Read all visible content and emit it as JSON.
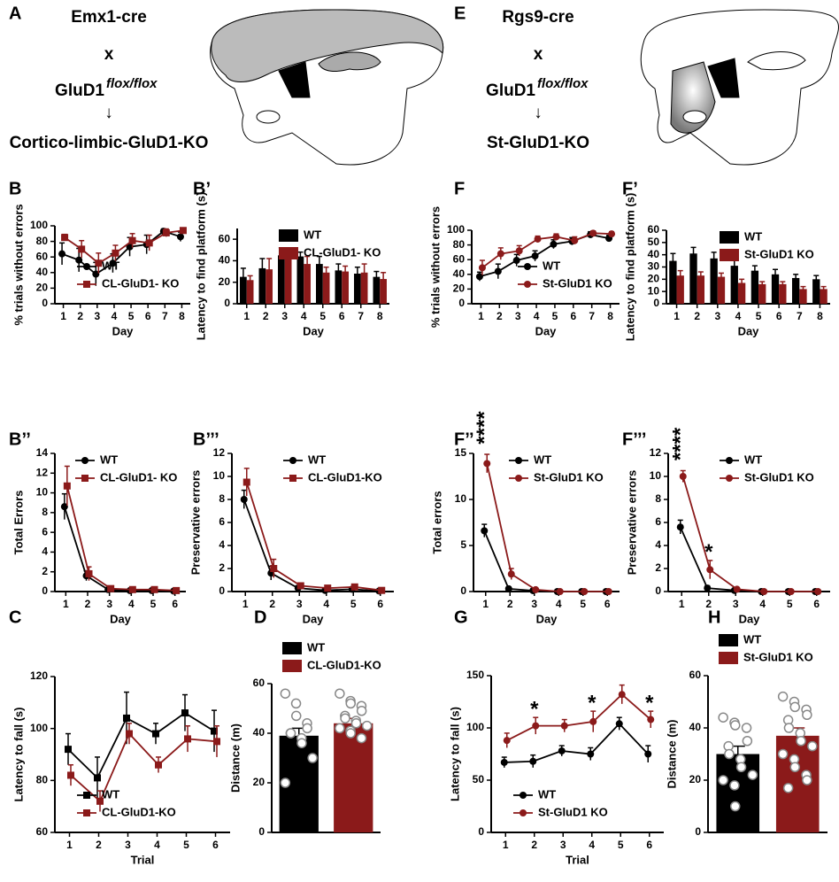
{
  "schematics": [
    {
      "panel": "A",
      "driver": "Emx1-cre",
      "cross": "x",
      "gene": "GluD1",
      "genotype": "flox/flox",
      "arrow": "↓",
      "result": "Cortico-limbic-GluD1-KO"
    },
    {
      "panel": "E",
      "driver": "Rgs9-cre",
      "cross": "x",
      "gene": "GluD1",
      "genotype": "flox/flox",
      "arrow": "↓",
      "result": "St-GluD1-KO"
    }
  ],
  "chart_data": [
    {
      "type": "line",
      "panel": "B",
      "xlabel": "Day",
      "ylabel": "% trials without errors",
      "categories": [
        "1",
        "2",
        "3",
        "4",
        "5",
        "6",
        "7",
        "8"
      ],
      "ylim": [
        0,
        100
      ],
      "yticks": [
        0,
        20,
        40,
        60,
        80,
        100
      ],
      "legend": "lower left",
      "series": [
        {
          "name": "WT",
          "color": "#000000",
          "marker": "circle",
          "values": [
            64,
            56,
            38,
            52,
            73,
            76,
            93,
            86
          ],
          "errors": [
            14,
            15,
            15,
            12,
            12,
            12,
            3,
            6
          ]
        },
        {
          "name": "CL-GluD1- KO",
          "color": "#8b1a1a",
          "marker": "square",
          "values": [
            85,
            70,
            52,
            65,
            81,
            78,
            91,
            94
          ],
          "errors": [
            4,
            11,
            13,
            10,
            9,
            10,
            5,
            3
          ]
        }
      ]
    },
    {
      "type": "bar",
      "panel": "B’",
      "xlabel": "Day",
      "ylabel": "Latency to find platform (s)",
      "categories": [
        "1",
        "2",
        "3",
        "4",
        "5",
        "6",
        "7",
        "8"
      ],
      "ylim": [
        0,
        70
      ],
      "yticks": [
        0,
        20,
        40,
        60
      ],
      "legend": "upper right",
      "series": [
        {
          "name": "WT",
          "color": "#000000",
          "values": [
            25,
            33,
            45,
            44,
            37,
            31,
            28,
            25
          ],
          "errors": [
            8,
            9,
            7,
            4,
            7,
            6,
            6,
            5
          ]
        },
        {
          "name": "CL-GluD1- KO",
          "color": "#8b1a1a",
          "values": [
            22,
            32,
            43,
            37,
            29,
            30,
            29,
            23
          ],
          "errors": [
            4,
            10,
            7,
            7,
            5,
            5,
            8,
            6
          ]
        }
      ]
    },
    {
      "type": "line",
      "panel": "F",
      "xlabel": "Day",
      "ylabel": "% trials without errors",
      "categories": [
        "1",
        "2",
        "3",
        "4",
        "5",
        "6",
        "7",
        "8"
      ],
      "ylim": [
        0,
        100
      ],
      "yticks": [
        0,
        20,
        40,
        60,
        80,
        100
      ],
      "legend": "lower right",
      "series": [
        {
          "name": "WT",
          "color": "#000000",
          "marker": "circle",
          "values": [
            37,
            44,
            59,
            65,
            81,
            85,
            94,
            89
          ],
          "errors": [
            6,
            10,
            8,
            7,
            6,
            5,
            4,
            4
          ]
        },
        {
          "name": "St-GluD1 KO",
          "color": "#8b1a1a",
          "marker": "circle",
          "values": [
            49,
            68,
            72,
            88,
            91,
            86,
            96,
            95
          ],
          "errors": [
            10,
            8,
            7,
            4,
            4,
            5,
            3,
            3
          ]
        }
      ]
    },
    {
      "type": "bar",
      "panel": "F’",
      "xlabel": "Day",
      "ylabel": "Latency to find platform (s)",
      "categories": [
        "1",
        "2",
        "3",
        "4",
        "5",
        "6",
        "7",
        "8"
      ],
      "ylim": [
        0,
        60
      ],
      "yticks": [
        0,
        10,
        20,
        30,
        40,
        50,
        60
      ],
      "legend": "upper right",
      "series": [
        {
          "name": "WT",
          "color": "#000000",
          "values": [
            35,
            41,
            37,
            31,
            27,
            24,
            21,
            20
          ],
          "errors": [
            6,
            5,
            5,
            5,
            4,
            4,
            3,
            3
          ]
        },
        {
          "name": "St-GluD1 KO",
          "color": "#8b1a1a",
          "values": [
            23,
            23,
            22,
            17,
            16,
            16,
            12,
            12
          ],
          "errors": [
            4,
            3,
            3,
            3,
            2,
            2,
            2,
            2
          ]
        }
      ]
    },
    {
      "type": "line",
      "panel": "B’’",
      "xlabel": "Day",
      "ylabel": "Total Errors",
      "categories": [
        "1",
        "2",
        "3",
        "4",
        "5",
        "6"
      ],
      "ylim": [
        0,
        14
      ],
      "yticks": [
        0,
        2,
        4,
        6,
        8,
        10,
        12,
        14
      ],
      "legend": "upper right",
      "series": [
        {
          "name": "WT",
          "color": "#000000",
          "marker": "circle",
          "values": [
            8.6,
            1.6,
            0.2,
            0.1,
            0.1,
            0.05
          ],
          "errors": [
            1.3,
            0.5,
            0.2,
            0.1,
            0.1,
            0.1
          ]
        },
        {
          "name": "CL-GluD1- KO",
          "color": "#8b1a1a",
          "marker": "square",
          "values": [
            10.7,
            1.8,
            0.3,
            0.2,
            0.2,
            0.1
          ],
          "errors": [
            2,
            0.7,
            0.2,
            0.1,
            0.2,
            0.1
          ]
        }
      ]
    },
    {
      "type": "line",
      "panel": "B’’’",
      "xlabel": "Day",
      "ylabel": "Preservative errors",
      "categories": [
        "1",
        "2",
        "3",
        "4",
        "5",
        "6"
      ],
      "ylim": [
        0,
        12
      ],
      "yticks": [
        0,
        2,
        4,
        6,
        8,
        10,
        12
      ],
      "legend": "upper right",
      "series": [
        {
          "name": "WT",
          "color": "#000000",
          "marker": "circle",
          "values": [
            8,
            1.6,
            0.3,
            0.1,
            0.2,
            0.05
          ],
          "errors": [
            0.8,
            0.6,
            0.2,
            0.1,
            0.1,
            0.1
          ]
        },
        {
          "name": "CL-GluD1-KO",
          "color": "#8b1a1a",
          "marker": "square",
          "values": [
            9.5,
            2,
            0.5,
            0.3,
            0.4,
            0.1
          ],
          "errors": [
            1.2,
            0.8,
            0.2,
            0.1,
            0.2,
            0.1
          ]
        }
      ]
    },
    {
      "type": "line",
      "panel": "F’’",
      "xlabel": "Day",
      "ylabel": "Total errors",
      "categories": [
        "1",
        "2",
        "3",
        "4",
        "5",
        "6"
      ],
      "ylim": [
        0,
        15
      ],
      "yticks": [
        0,
        5,
        10,
        15
      ],
      "legend": "upper right",
      "annotations": [
        {
          "text": "****",
          "x": "1"
        }
      ],
      "series": [
        {
          "name": "WT",
          "color": "#000000",
          "marker": "circle",
          "values": [
            6.6,
            0.3,
            0.1,
            0,
            0,
            0
          ],
          "errors": [
            0.7,
            0.2,
            0.1,
            0,
            0,
            0
          ]
        },
        {
          "name": "St-GluD1 KO",
          "color": "#8b1a1a",
          "marker": "circle",
          "values": [
            13.9,
            1.9,
            0.2,
            0,
            0,
            0
          ],
          "errors": [
            1,
            0.6,
            0.1,
            0,
            0,
            0
          ]
        }
      ]
    },
    {
      "type": "line",
      "panel": "F’’’",
      "xlabel": "Day",
      "ylabel": "Preservative errors",
      "categories": [
        "1",
        "2",
        "3",
        "4",
        "5",
        "6"
      ],
      "ylim": [
        0,
        12
      ],
      "yticks": [
        0,
        2,
        4,
        6,
        8,
        10,
        12
      ],
      "legend": "upper right",
      "annotations": [
        {
          "text": "****",
          "x": "1"
        },
        {
          "text": "*",
          "x": "2"
        }
      ],
      "series": [
        {
          "name": "WT",
          "color": "#000000",
          "marker": "circle",
          "values": [
            5.6,
            0.3,
            0.1,
            0,
            0,
            0
          ],
          "errors": [
            0.6,
            0.2,
            0.1,
            0,
            0,
            0
          ]
        },
        {
          "name": "St-GluD1 KO",
          "color": "#8b1a1a",
          "marker": "circle",
          "values": [
            10,
            1.9,
            0.2,
            0,
            0,
            0
          ],
          "errors": [
            0.5,
            0.8,
            0.1,
            0,
            0,
            0
          ]
        }
      ]
    },
    {
      "type": "line",
      "panel": "C",
      "xlabel": "Trial",
      "ylabel": "Latency to fall (s)",
      "categories": [
        "1",
        "2",
        "3",
        "4",
        "5",
        "6"
      ],
      "ylim": [
        60,
        120
      ],
      "yticks": [
        60,
        80,
        100,
        120
      ],
      "legend": "lower left",
      "series": [
        {
          "name": "WT",
          "color": "#000000",
          "marker": "square",
          "values": [
            92,
            81,
            104,
            98,
            106,
            99
          ],
          "errors": [
            6,
            8,
            10,
            4,
            7,
            8
          ]
        },
        {
          "name": "CL-GluD1-KO",
          "color": "#8b1a1a",
          "marker": "square",
          "values": [
            82,
            72,
            98,
            86,
            96,
            95
          ],
          "errors": [
            4,
            4,
            4,
            3,
            5,
            6
          ]
        }
      ]
    },
    {
      "type": "bar",
      "panel": "D",
      "ylabel": "Distance (m)",
      "ylim": [
        0,
        60
      ],
      "yticks": [
        0,
        20,
        40,
        60
      ],
      "legend": "top",
      "series": [
        {
          "name": "WT",
          "color": "#000000",
          "values": [
            39
          ],
          "errors": [
            3
          ],
          "points": [
            56,
            52,
            47,
            44,
            42,
            40,
            40,
            38,
            36,
            30,
            20
          ]
        },
        {
          "name": "CL-GluD1-KO",
          "color": "#8b1a1a",
          "values": [
            44
          ],
          "errors": [
            2
          ],
          "points": [
            56,
            53,
            52,
            51,
            49,
            47,
            46,
            45,
            44,
            43,
            42,
            41,
            40,
            38
          ]
        }
      ]
    },
    {
      "type": "line",
      "panel": "G",
      "xlabel": "Trial",
      "ylabel": "Latency to fall (s)",
      "categories": [
        "1",
        "2",
        "3",
        "4",
        "5",
        "6"
      ],
      "ylim": [
        0,
        150
      ],
      "yticks": [
        0,
        50,
        100,
        150
      ],
      "legend": "lower left",
      "annotations": [
        {
          "text": "*",
          "x": "2"
        },
        {
          "text": "*",
          "x": "4"
        },
        {
          "text": "*",
          "x": "6"
        }
      ],
      "series": [
        {
          "name": "WT",
          "color": "#000000",
          "marker": "circle",
          "values": [
            67,
            68,
            78,
            75,
            104,
            75
          ],
          "errors": [
            5,
            6,
            5,
            6,
            6,
            8
          ]
        },
        {
          "name": "St-GluD1 KO",
          "color": "#8b1a1a",
          "marker": "circle",
          "values": [
            88,
            102,
            102,
            106,
            132,
            108
          ],
          "errors": [
            7,
            8,
            6,
            10,
            9,
            8
          ]
        }
      ]
    },
    {
      "type": "bar",
      "panel": "H",
      "ylabel": "Distance (m)",
      "ylim": [
        0,
        60
      ],
      "yticks": [
        0,
        20,
        40,
        60
      ],
      "legend": "top",
      "series": [
        {
          "name": "WT",
          "color": "#000000",
          "values": [
            30
          ],
          "errors": [
            3
          ],
          "points": [
            44,
            42,
            41,
            40,
            35,
            33,
            30,
            28,
            25,
            22,
            20,
            18,
            10
          ]
        },
        {
          "name": "St-GluD1 KO",
          "color": "#8b1a1a",
          "values": [
            37
          ],
          "errors": [
            3
          ],
          "points": [
            52,
            50,
            48,
            47,
            45,
            43,
            40,
            38,
            35,
            33,
            30,
            28,
            25,
            22,
            20,
            17
          ]
        }
      ]
    }
  ]
}
